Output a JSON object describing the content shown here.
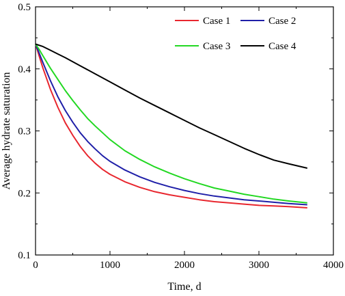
{
  "chart_data": {
    "type": "line",
    "xlabel": "Time, d",
    "ylabel": "Average hydrate saturation",
    "xlim": [
      0,
      4000
    ],
    "ylim": [
      0.1,
      0.5
    ],
    "xticks": [
      0,
      1000,
      2000,
      3000,
      4000
    ],
    "yticks": [
      0.1,
      0.2,
      0.3,
      0.4,
      0.5
    ],
    "xtick_labels": [
      "0",
      "1000",
      "2000",
      "3000",
      "4000"
    ],
    "ytick_labels": [
      "0.1",
      "0.2",
      "0.3",
      "0.4",
      "0.5"
    ],
    "grid": false,
    "legend_position": "top-right",
    "series": [
      {
        "name": "Case 1",
        "color": "#e8262e",
        "x": [
          0,
          50,
          100,
          200,
          300,
          400,
          500,
          600,
          700,
          800,
          900,
          1000,
          1200,
          1400,
          1600,
          1800,
          2000,
          2200,
          2400,
          2600,
          2800,
          3000,
          3200,
          3400,
          3650
        ],
        "y": [
          0.44,
          0.42,
          0.401,
          0.367,
          0.338,
          0.313,
          0.293,
          0.275,
          0.26,
          0.248,
          0.238,
          0.23,
          0.218,
          0.209,
          0.202,
          0.197,
          0.193,
          0.189,
          0.186,
          0.184,
          0.182,
          0.18,
          0.179,
          0.178,
          0.176
        ]
      },
      {
        "name": "Case 2",
        "color": "#1f1fa8",
        "x": [
          0,
          50,
          100,
          200,
          300,
          400,
          500,
          600,
          700,
          800,
          900,
          1000,
          1200,
          1400,
          1600,
          1800,
          2000,
          2200,
          2400,
          2600,
          2800,
          3000,
          3200,
          3400,
          3650
        ],
        "y": [
          0.44,
          0.425,
          0.41,
          0.381,
          0.355,
          0.333,
          0.314,
          0.297,
          0.283,
          0.271,
          0.26,
          0.251,
          0.237,
          0.226,
          0.217,
          0.21,
          0.204,
          0.199,
          0.195,
          0.192,
          0.189,
          0.187,
          0.185,
          0.183,
          0.181
        ]
      },
      {
        "name": "Case 3",
        "color": "#22d822",
        "x": [
          0,
          50,
          100,
          200,
          300,
          400,
          500,
          600,
          700,
          800,
          900,
          1000,
          1200,
          1400,
          1600,
          1800,
          2000,
          2200,
          2400,
          2600,
          2800,
          3000,
          3200,
          3400,
          3650
        ],
        "y": [
          0.44,
          0.431,
          0.421,
          0.401,
          0.383,
          0.365,
          0.349,
          0.334,
          0.32,
          0.308,
          0.297,
          0.286,
          0.268,
          0.254,
          0.242,
          0.232,
          0.223,
          0.215,
          0.208,
          0.203,
          0.198,
          0.194,
          0.19,
          0.187,
          0.184
        ]
      },
      {
        "name": "Case 4",
        "color": "#000000",
        "x": [
          0,
          100,
          200,
          300,
          400,
          600,
          800,
          1000,
          1200,
          1400,
          1600,
          1800,
          2000,
          2200,
          2400,
          2600,
          2800,
          3000,
          3200,
          3400,
          3650
        ],
        "y": [
          0.44,
          0.436,
          0.43,
          0.424,
          0.418,
          0.405,
          0.392,
          0.379,
          0.366,
          0.353,
          0.341,
          0.329,
          0.317,
          0.305,
          0.294,
          0.283,
          0.272,
          0.262,
          0.253,
          0.247,
          0.24
        ]
      }
    ]
  }
}
